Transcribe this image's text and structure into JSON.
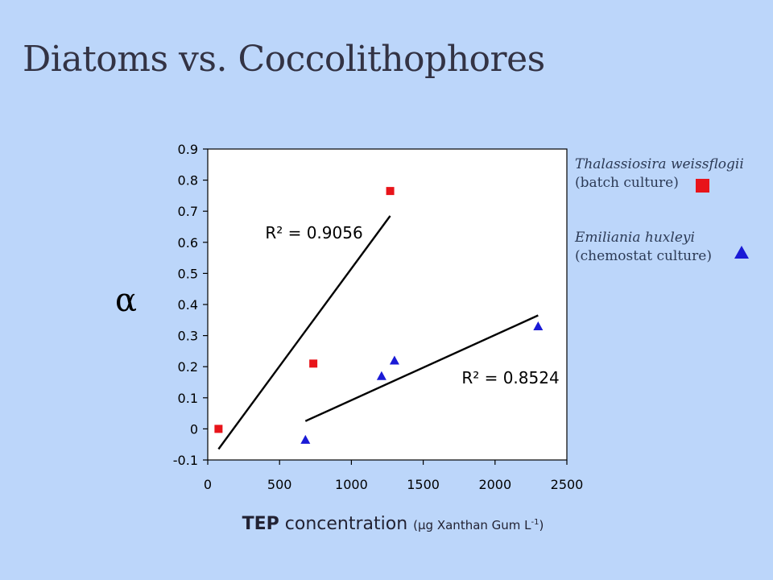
{
  "slide": {
    "title": "Diatoms vs. Coccolithophores"
  },
  "chart_data": {
    "type": "scatter",
    "title": "",
    "ylabel": "α",
    "xlabel": {
      "bold": "TEP",
      "main": "concentration",
      "unit_open": "(µg Xanthan Gum L",
      "unit_sup": "-1",
      "unit_close": ")"
    },
    "xlim": [
      0,
      2500
    ],
    "ylim": [
      -0.1,
      0.9
    ],
    "x_ticks": [
      0,
      500,
      1000,
      1500,
      2000,
      2500
    ],
    "y_ticks": [
      -0.1,
      0,
      0.1,
      0.2,
      0.3,
      0.4,
      0.5,
      0.6,
      0.7,
      0.8,
      0.9
    ],
    "grid": false,
    "legend_position": "right",
    "series": [
      {
        "name": "Thalassiosira weissflogii",
        "name_note": "(batch culture)",
        "marker": "square",
        "color": "#e8141a",
        "points": [
          {
            "x": 75,
            "y": 0.0
          },
          {
            "x": 735,
            "y": 0.21
          },
          {
            "x": 1270,
            "y": 0.765
          }
        ],
        "trendline": {
          "x": [
            75,
            1270
          ],
          "y": [
            -0.065,
            0.685
          ]
        },
        "r2_label": "R² = 0.9056"
      },
      {
        "name": "Emiliania huxleyi",
        "name_note": "(chemostat culture)",
        "marker": "triangle",
        "color": "#1a1ad6",
        "points": [
          {
            "x": 680,
            "y": -0.035
          },
          {
            "x": 1210,
            "y": 0.17
          },
          {
            "x": 1300,
            "y": 0.22
          },
          {
            "x": 2300,
            "y": 0.33
          }
        ],
        "trendline": {
          "x": [
            680,
            2300
          ],
          "y": [
            0.025,
            0.365
          ]
        },
        "r2_label": "R² = 0.8524"
      }
    ]
  }
}
